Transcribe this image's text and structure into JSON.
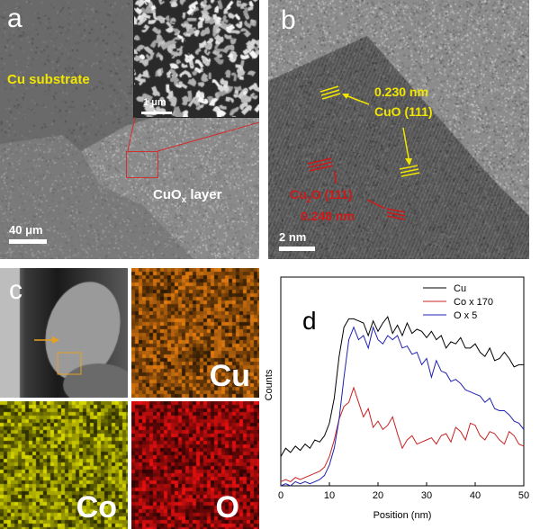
{
  "panel_a": {
    "label": "a",
    "substrate_label": "Cu substrate",
    "layer_label_main": "CuO",
    "layer_label_sub": "x",
    "layer_label_tail": " layer",
    "scale_main": "40 μm",
    "scale_inset": "1 μm"
  },
  "panel_b": {
    "label": "b",
    "cuo_d": "0.230 nm",
    "cuo_plane": "CuO  (111)",
    "cu2o_plane_a": "Cu",
    "cu2o_plane_sub": "2",
    "cu2o_plane_b": "O (111)",
    "cu2o_d": "0.248 nm",
    "scale": "2 nm",
    "colors": {
      "cuo": "#f2e600",
      "cu2o": "#d01818"
    }
  },
  "panel_c": {
    "label": "c",
    "maps": [
      {
        "element": "Cu",
        "color": "#e07a10"
      },
      {
        "element": "Co",
        "color": "#d8d800"
      },
      {
        "element": "O",
        "color": "#e81010"
      }
    ]
  },
  "panel_d": {
    "label": "d",
    "chart_data": {
      "type": "line",
      "xlabel": "Position (nm)",
      "ylabel": "Counts",
      "xlim": [
        0,
        50
      ],
      "ylim": [
        0,
        1
      ],
      "x_ticks": [
        0,
        10,
        20,
        30,
        40,
        50
      ],
      "legend_position": "top-right",
      "grid": false,
      "series": [
        {
          "name": "Cu",
          "color": "#000000",
          "x": [
            0,
            1,
            2,
            3,
            4,
            5,
            6,
            7,
            8,
            9,
            10,
            11,
            12,
            13,
            14,
            15,
            16,
            17,
            18,
            19,
            20,
            21,
            22,
            23,
            24,
            25,
            26,
            27,
            28,
            29,
            30,
            31,
            32,
            33,
            34,
            35,
            36,
            37,
            38,
            39,
            40,
            41,
            42,
            43,
            44,
            45,
            46,
            47,
            48,
            49,
            50
          ],
          "y": [
            0.14,
            0.18,
            0.16,
            0.19,
            0.17,
            0.2,
            0.18,
            0.22,
            0.21,
            0.24,
            0.3,
            0.42,
            0.62,
            0.76,
            0.8,
            0.8,
            0.79,
            0.78,
            0.72,
            0.79,
            0.74,
            0.78,
            0.81,
            0.73,
            0.77,
            0.72,
            0.78,
            0.73,
            0.75,
            0.74,
            0.71,
            0.74,
            0.7,
            0.72,
            0.66,
            0.69,
            0.68,
            0.71,
            0.66,
            0.66,
            0.68,
            0.64,
            0.62,
            0.66,
            0.6,
            0.61,
            0.64,
            0.61,
            0.57,
            0.58,
            0.58
          ]
        },
        {
          "name": "Co x 170",
          "color": "#c82020",
          "x": [
            0,
            1,
            2,
            3,
            4,
            5,
            6,
            7,
            8,
            9,
            10,
            11,
            12,
            13,
            14,
            15,
            16,
            17,
            18,
            19,
            20,
            21,
            22,
            23,
            24,
            25,
            26,
            27,
            28,
            29,
            30,
            31,
            32,
            33,
            34,
            35,
            36,
            37,
            38,
            39,
            40,
            41,
            42,
            43,
            44,
            45,
            46,
            47,
            48,
            49,
            50
          ],
          "y": [
            0.02,
            0.03,
            0.02,
            0.04,
            0.03,
            0.04,
            0.05,
            0.06,
            0.07,
            0.09,
            0.14,
            0.22,
            0.32,
            0.38,
            0.4,
            0.47,
            0.4,
            0.33,
            0.37,
            0.28,
            0.31,
            0.27,
            0.29,
            0.33,
            0.25,
            0.18,
            0.22,
            0.24,
            0.2,
            0.21,
            0.22,
            0.23,
            0.2,
            0.24,
            0.25,
            0.21,
            0.28,
            0.26,
            0.22,
            0.3,
            0.29,
            0.24,
            0.22,
            0.26,
            0.25,
            0.22,
            0.2,
            0.26,
            0.24,
            0.2,
            0.19
          ]
        },
        {
          "name": "O x 5",
          "color": "#2020b0",
          "x": [
            0,
            1,
            2,
            3,
            4,
            5,
            6,
            7,
            8,
            9,
            10,
            11,
            12,
            13,
            14,
            15,
            16,
            17,
            18,
            19,
            20,
            21,
            22,
            23,
            24,
            25,
            26,
            27,
            28,
            29,
            30,
            31,
            32,
            33,
            34,
            35,
            36,
            37,
            38,
            39,
            40,
            41,
            42,
            43,
            44,
            45,
            46,
            47,
            48,
            49,
            50
          ],
          "y": [
            0.0,
            0.01,
            0.0,
            0.02,
            0.01,
            0.02,
            0.01,
            0.02,
            0.03,
            0.05,
            0.1,
            0.18,
            0.32,
            0.52,
            0.7,
            0.76,
            0.7,
            0.72,
            0.66,
            0.76,
            0.7,
            0.68,
            0.72,
            0.7,
            0.72,
            0.66,
            0.67,
            0.63,
            0.64,
            0.58,
            0.61,
            0.52,
            0.6,
            0.55,
            0.54,
            0.5,
            0.51,
            0.49,
            0.46,
            0.45,
            0.44,
            0.43,
            0.4,
            0.42,
            0.37,
            0.36,
            0.36,
            0.34,
            0.31,
            0.3,
            0.27
          ]
        }
      ]
    }
  }
}
